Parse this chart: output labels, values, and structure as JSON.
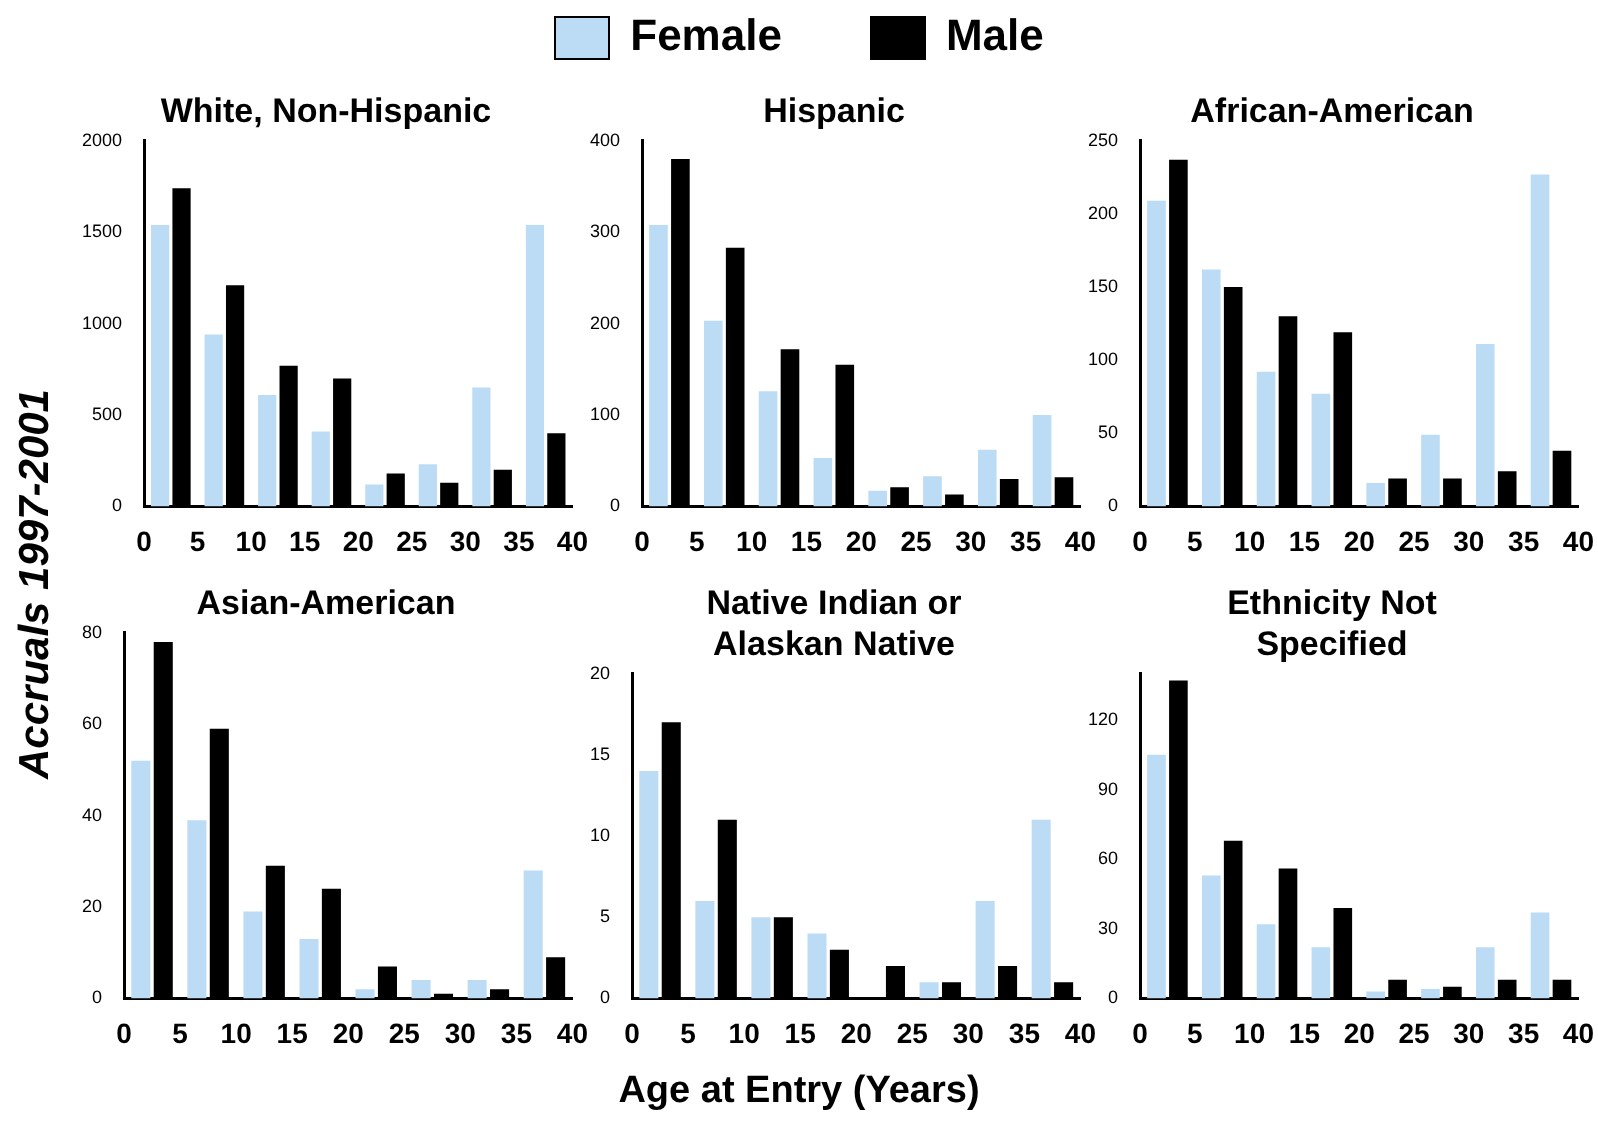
{
  "chart_data": [
    {
      "type": "bar",
      "title": "White, Non-Hispanic",
      "ylabel": "Accruals  1997-2001",
      "legend": "top",
      "x": [
        2.5,
        7.5,
        12.5,
        17.5,
        22.5,
        27.5,
        32.5,
        37.5
      ],
      "xlim": [
        0,
        40
      ],
      "xticks": [
        0,
        5,
        10,
        15,
        20,
        25,
        30,
        35,
        40
      ],
      "ylim": [
        0,
        2000
      ],
      "yticks": [
        0,
        500,
        1000,
        1500,
        2000
      ],
      "series": [
        {
          "name": "Female",
          "color": "#bcdcf5",
          "values": [
            1540,
            940,
            610,
            410,
            120,
            230,
            650,
            1540
          ]
        },
        {
          "name": "Male",
          "color": "#000000",
          "values": [
            1740,
            1210,
            770,
            700,
            180,
            130,
            200,
            400
          ]
        }
      ]
    },
    {
      "type": "bar",
      "title": "Hispanic",
      "x": [
        2.5,
        7.5,
        12.5,
        17.5,
        22.5,
        27.5,
        32.5,
        37.5
      ],
      "xlim": [
        0,
        40
      ],
      "xticks": [
        0,
        5,
        10,
        15,
        20,
        25,
        30,
        35,
        40
      ],
      "ylim": [
        0,
        400
      ],
      "yticks": [
        0,
        100,
        200,
        300,
        400
      ],
      "series": [
        {
          "color": "#bcdcf5",
          "values": [
            308,
            203,
            126,
            53,
            17,
            33,
            62,
            100
          ]
        },
        {
          "color": "#000000",
          "values": [
            380,
            283,
            172,
            155,
            21,
            13,
            30,
            32
          ]
        }
      ]
    },
    {
      "type": "bar",
      "title": "African-American",
      "x": [
        2.5,
        7.5,
        12.5,
        17.5,
        22.5,
        27.5,
        32.5,
        37.5
      ],
      "xlim": [
        0,
        40
      ],
      "xticks": [
        0,
        5,
        10,
        15,
        20,
        25,
        30,
        35,
        40
      ],
      "ylim": [
        0,
        250
      ],
      "yticks": [
        0,
        50,
        100,
        150,
        200,
        250
      ],
      "series": [
        {
          "color": "#bcdcf5",
          "values": [
            209,
            162,
            92,
            77,
            16,
            49,
            111,
            227
          ]
        },
        {
          "color": "#000000",
          "values": [
            237,
            150,
            130,
            119,
            19,
            19,
            24,
            38
          ]
        }
      ]
    },
    {
      "type": "bar",
      "title": "Asian-American",
      "x": [
        2.5,
        7.5,
        12.5,
        17.5,
        22.5,
        27.5,
        32.5,
        37.5
      ],
      "xlim": [
        0,
        40
      ],
      "xticks": [
        0,
        5,
        10,
        15,
        20,
        25,
        30,
        35,
        40
      ],
      "ylim": [
        0,
        80
      ],
      "yticks": [
        0,
        20,
        40,
        60,
        80
      ],
      "series": [
        {
          "color": "#bcdcf5",
          "values": [
            52,
            39,
            19,
            13,
            2,
            4,
            4,
            28
          ]
        },
        {
          "color": "#000000",
          "values": [
            78,
            59,
            29,
            24,
            7,
            1,
            2,
            9
          ]
        }
      ]
    },
    {
      "type": "bar",
      "title": "Native Indian or\nAlaskan Native",
      "xlabel": "Age at Entry (Years)",
      "x": [
        2.5,
        7.5,
        12.5,
        17.5,
        22.5,
        27.5,
        32.5,
        37.5
      ],
      "xlim": [
        0,
        40
      ],
      "xticks": [
        0,
        5,
        10,
        15,
        20,
        25,
        30,
        35,
        40
      ],
      "ylim": [
        0,
        20
      ],
      "yticks": [
        0,
        5,
        10,
        15,
        20
      ],
      "series": [
        {
          "color": "#bcdcf5",
          "values": [
            14,
            6,
            5,
            4,
            0,
            1,
            6,
            11
          ]
        },
        {
          "color": "#000000",
          "values": [
            17,
            11,
            5,
            3,
            2,
            1,
            2,
            1
          ]
        }
      ]
    },
    {
      "type": "bar",
      "title": "Ethnicity Not\nSpecified",
      "x": [
        2.5,
        7.5,
        12.5,
        17.5,
        22.5,
        27.5,
        32.5,
        37.5
      ],
      "xlim": [
        0,
        40
      ],
      "xticks": [
        0,
        5,
        10,
        15,
        20,
        25,
        30,
        35,
        40
      ],
      "ylim": [
        0,
        140
      ],
      "yticks": [
        0,
        30,
        60,
        90,
        120
      ],
      "series": [
        {
          "color": "#bcdcf5",
          "values": [
            105,
            53,
            32,
            22,
            3,
            4,
            22,
            37
          ]
        },
        {
          "color": "#000000",
          "values": [
            137,
            68,
            56,
            39,
            8,
            5,
            8,
            8
          ]
        }
      ]
    }
  ]
}
